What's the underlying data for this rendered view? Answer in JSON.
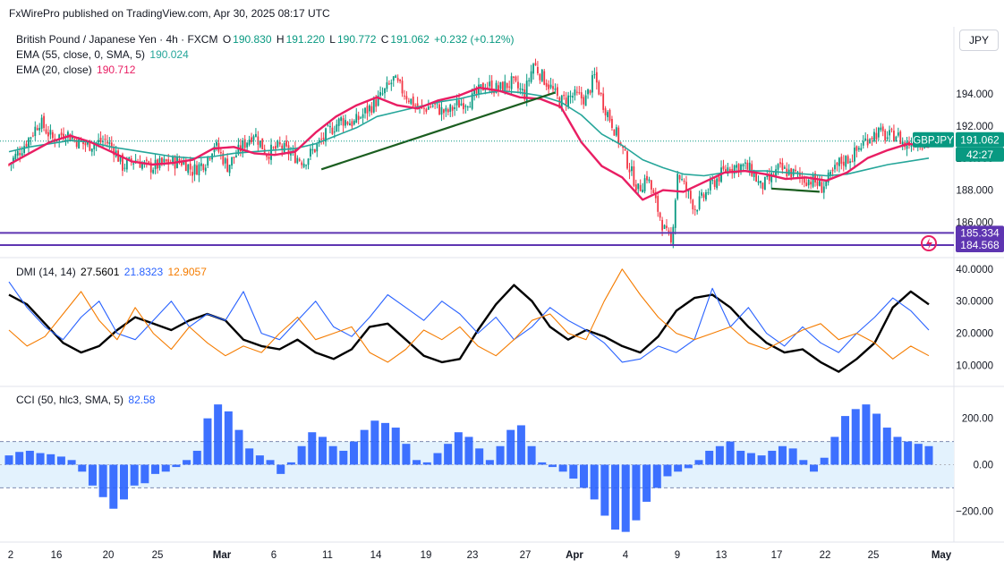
{
  "header": {
    "published": "FxWirePro published on TradingView.com, Apr 30, 2025 08:17 UTC"
  },
  "currency_button": "JPY",
  "legend": {
    "symbol": "British Pound / Japanese Yen · 4h · FXCM",
    "o_label": "O",
    "o": "190.830",
    "h_label": "H",
    "h": "191.220",
    "l_label": "L",
    "l": "190.772",
    "c_label": "C",
    "c": "191.062",
    "change": "+0.232 (+0.12%)",
    "ema55_label": "EMA (55, close, 0, SMA, 5)",
    "ema55_value": "190.024",
    "ema20_label": "EMA (20, close)",
    "ema20_value": "190.712",
    "dmi_label": "DMI (14, 14)",
    "dmi_adx": "27.5601",
    "dmi_plus": "21.8323",
    "dmi_minus": "12.9057",
    "cci_label": "CCI (50, hlc3, SMA, 5)",
    "cci_value": "82.58"
  },
  "price_badges": {
    "ticker": "GBPJPY",
    "last": "191.062",
    "countdown": "42:27",
    "level_upper": "185.334",
    "level_lower": "184.568"
  },
  "colors": {
    "up": "#089981",
    "down": "#f23645",
    "ema20": "#e91e63",
    "ema55": "#26a69a",
    "trend": "#1b5e20",
    "level": "#5e35b1",
    "adx": "#000000",
    "plus_di": "#2962ff",
    "minus_di": "#f57c00",
    "cci_bar": "#2962ff",
    "cci_band": "#e3f2fd"
  },
  "chart_data": [
    {
      "type": "candlestick",
      "title": "British Pound / Japanese Yen · 4h · FXCM",
      "ylim": [
        183.9,
        198.2
      ],
      "y_ticks": [
        "194.000",
        "192.000",
        "190.000",
        "188.000",
        "186.000"
      ],
      "x_ticks": [
        "2",
        "16",
        "20",
        "25",
        "Mar",
        "6",
        "11",
        "14",
        "19",
        "23",
        "27",
        "Apr",
        "4",
        "9",
        "13",
        "17",
        "22",
        "25",
        "May"
      ],
      "close_path": [
        [
          0,
          189.6
        ],
        [
          8,
          191.0
        ],
        [
          14,
          192.3
        ],
        [
          20,
          191.2
        ],
        [
          26,
          191.6
        ],
        [
          32,
          191.0
        ],
        [
          36,
          190.8
        ],
        [
          44,
          191.1
        ],
        [
          48,
          190.6
        ],
        [
          52,
          189.5
        ],
        [
          58,
          189.9
        ],
        [
          64,
          189.4
        ],
        [
          72,
          189.7
        ],
        [
          80,
          189.8
        ],
        [
          84,
          189.2
        ],
        [
          90,
          189.8
        ],
        [
          94,
          190.9
        ],
        [
          100,
          189.5
        ],
        [
          106,
          190.6
        ],
        [
          112,
          191.6
        ],
        [
          118,
          190.3
        ],
        [
          124,
          190.7
        ],
        [
          130,
          190.2
        ],
        [
          135,
          189.8
        ],
        [
          140,
          190.6
        ],
        [
          146,
          191.6
        ],
        [
          152,
          192.4
        ],
        [
          158,
          192.2
        ],
        [
          164,
          193.0
        ],
        [
          170,
          193.8
        ],
        [
          176,
          194.9
        ],
        [
          182,
          193.9
        ],
        [
          188,
          193.0
        ],
        [
          194,
          193.3
        ],
        [
          200,
          192.8
        ],
        [
          206,
          193.4
        ],
        [
          212,
          193.7
        ],
        [
          218,
          194.6
        ],
        [
          224,
          194.3
        ],
        [
          230,
          194.7
        ],
        [
          236,
          194.0
        ],
        [
          240,
          195.9
        ],
        [
          244,
          195.1
        ],
        [
          248,
          194.4
        ],
        [
          252,
          193.5
        ],
        [
          258,
          193.9
        ],
        [
          264,
          193.7
        ],
        [
          268,
          195.1
        ],
        [
          272,
          193.4
        ],
        [
          276,
          192.2
        ],
        [
          280,
          190.8
        ],
        [
          284,
          189.4
        ],
        [
          288,
          188.0
        ],
        [
          292,
          188.9
        ],
        [
          296,
          187.2
        ],
        [
          300,
          185.5
        ],
        [
          303,
          184.6
        ],
        [
          306,
          189.1
        ],
        [
          310,
          188.0
        ],
        [
          314,
          186.9
        ],
        [
          318,
          187.6
        ],
        [
          322,
          188.4
        ],
        [
          326,
          189.0
        ],
        [
          330,
          189.5
        ],
        [
          336,
          189.5
        ],
        [
          340,
          189.2
        ],
        [
          344,
          188.2
        ],
        [
          348,
          188.6
        ],
        [
          352,
          189.3
        ],
        [
          358,
          189.1
        ],
        [
          364,
          188.7
        ],
        [
          368,
          188.6
        ],
        [
          372,
          188.2
        ],
        [
          376,
          188.8
        ],
        [
          380,
          189.7
        ],
        [
          386,
          190.1
        ],
        [
          390,
          190.8
        ],
        [
          394,
          191.4
        ],
        [
          398,
          191.6
        ],
        [
          402,
          191.3
        ],
        [
          406,
          191.5
        ],
        [
          410,
          190.8
        ],
        [
          414,
          191.1
        ],
        [
          418,
          191.0
        ],
        [
          421,
          191.06
        ]
      ],
      "ema20": [
        189.6,
        190.3,
        191.0,
        191.4,
        191.0,
        190.4,
        189.8,
        189.6,
        189.7,
        189.9,
        190.6,
        190.7,
        190.3,
        190.2,
        190.4,
        191.6,
        192.6,
        193.3,
        193.8,
        193.3,
        193.1,
        193.6,
        193.9,
        194.4,
        194.2,
        193.8,
        193.7,
        193.2,
        191.0,
        189.5,
        188.8,
        187.4,
        188.0,
        187.9,
        188.5,
        189.1,
        189.2,
        189.0,
        188.7,
        188.8,
        188.6,
        189.1,
        190.0,
        190.5,
        190.9,
        190.7
      ],
      "ema55": [
        190.4,
        190.7,
        190.9,
        191.1,
        191.0,
        190.7,
        190.5,
        190.3,
        190.1,
        190.0,
        190.1,
        190.3,
        190.4,
        190.5,
        190.6,
        190.9,
        191.4,
        191.9,
        192.6,
        192.9,
        193.2,
        193.5,
        193.7,
        194.0,
        194.2,
        194.1,
        193.9,
        193.5,
        192.7,
        191.5,
        190.8,
        189.9,
        189.4,
        189.0,
        188.9,
        189.1,
        189.2,
        189.2,
        189.1,
        189.0,
        188.9,
        189.0,
        189.3,
        189.6,
        189.8,
        190.0
      ],
      "trendlines": [
        {
          "from": [
            143,
            189.3
          ],
          "to": [
            250,
            194.1
          ]
        },
        {
          "from": [
            349,
            188.1
          ],
          "to": [
            371,
            187.9
          ]
        }
      ],
      "levels": [
        185.334,
        184.568
      ]
    },
    {
      "type": "line",
      "title": "DMI (14, 14)",
      "ylim": [
        4,
        43
      ],
      "y_ticks": [
        "40.0000",
        "30.0000",
        "20.0000",
        "10.0000"
      ],
      "series": [
        {
          "name": "ADX",
          "values": [
            32,
            29,
            23,
            17,
            14,
            16,
            21,
            25,
            23,
            21,
            24,
            26,
            24,
            18,
            16,
            15,
            18,
            14,
            12,
            15,
            22,
            23,
            18,
            13,
            11,
            12,
            21,
            29,
            35,
            30,
            22,
            18,
            21,
            19,
            16,
            14,
            19,
            27,
            31,
            32,
            28,
            22,
            17,
            14,
            15,
            11,
            8,
            12,
            17,
            28,
            33,
            29
          ]
        },
        {
          "name": "+DI",
          "values": [
            36,
            28,
            22,
            18,
            25,
            30,
            20,
            18,
            24,
            30,
            22,
            26,
            24,
            33,
            20,
            18,
            24,
            30,
            22,
            19,
            25,
            32,
            28,
            24,
            30,
            26,
            20,
            25,
            18,
            22,
            28,
            24,
            21,
            17,
            11,
            12,
            16,
            14,
            18,
            34,
            22,
            28,
            20,
            16,
            22,
            17,
            14,
            20,
            25,
            31,
            27,
            21
          ]
        },
        {
          "name": "-DI",
          "values": [
            21,
            16,
            19,
            26,
            33,
            24,
            18,
            28,
            20,
            15,
            22,
            17,
            13,
            16,
            14,
            20,
            25,
            18,
            20,
            22,
            14,
            11,
            15,
            21,
            18,
            22,
            16,
            13,
            18,
            24,
            26,
            20,
            18,
            30,
            40,
            32,
            25,
            20,
            18,
            20,
            22,
            17,
            15,
            18,
            21,
            23,
            18,
            20,
            17,
            12,
            16,
            13
          ]
        }
      ]
    },
    {
      "type": "bar",
      "title": "CCI (50, hlc3, SMA, 5)",
      "ylim": [
        -330,
        330
      ],
      "y_ticks": [
        "200.00",
        "0.00",
        "−200.00"
      ],
      "band": [
        100,
        -100
      ],
      "values": [
        40,
        55,
        60,
        50,
        45,
        35,
        20,
        -30,
        -90,
        -140,
        -190,
        -150,
        -90,
        -80,
        -40,
        -30,
        -10,
        20,
        60,
        200,
        260,
        230,
        150,
        70,
        40,
        20,
        -40,
        10,
        80,
        140,
        120,
        80,
        60,
        100,
        150,
        190,
        180,
        160,
        90,
        20,
        10,
        50,
        90,
        140,
        120,
        70,
        20,
        80,
        150,
        170,
        80,
        10,
        -10,
        -30,
        -60,
        -100,
        -150,
        -220,
        -280,
        -290,
        -240,
        -160,
        -100,
        -50,
        -30,
        -15,
        20,
        60,
        80,
        100,
        60,
        50,
        40,
        60,
        80,
        70,
        20,
        -30,
        30,
        120,
        210,
        240,
        260,
        220,
        160,
        120,
        100,
        90,
        80
      ]
    }
  ]
}
